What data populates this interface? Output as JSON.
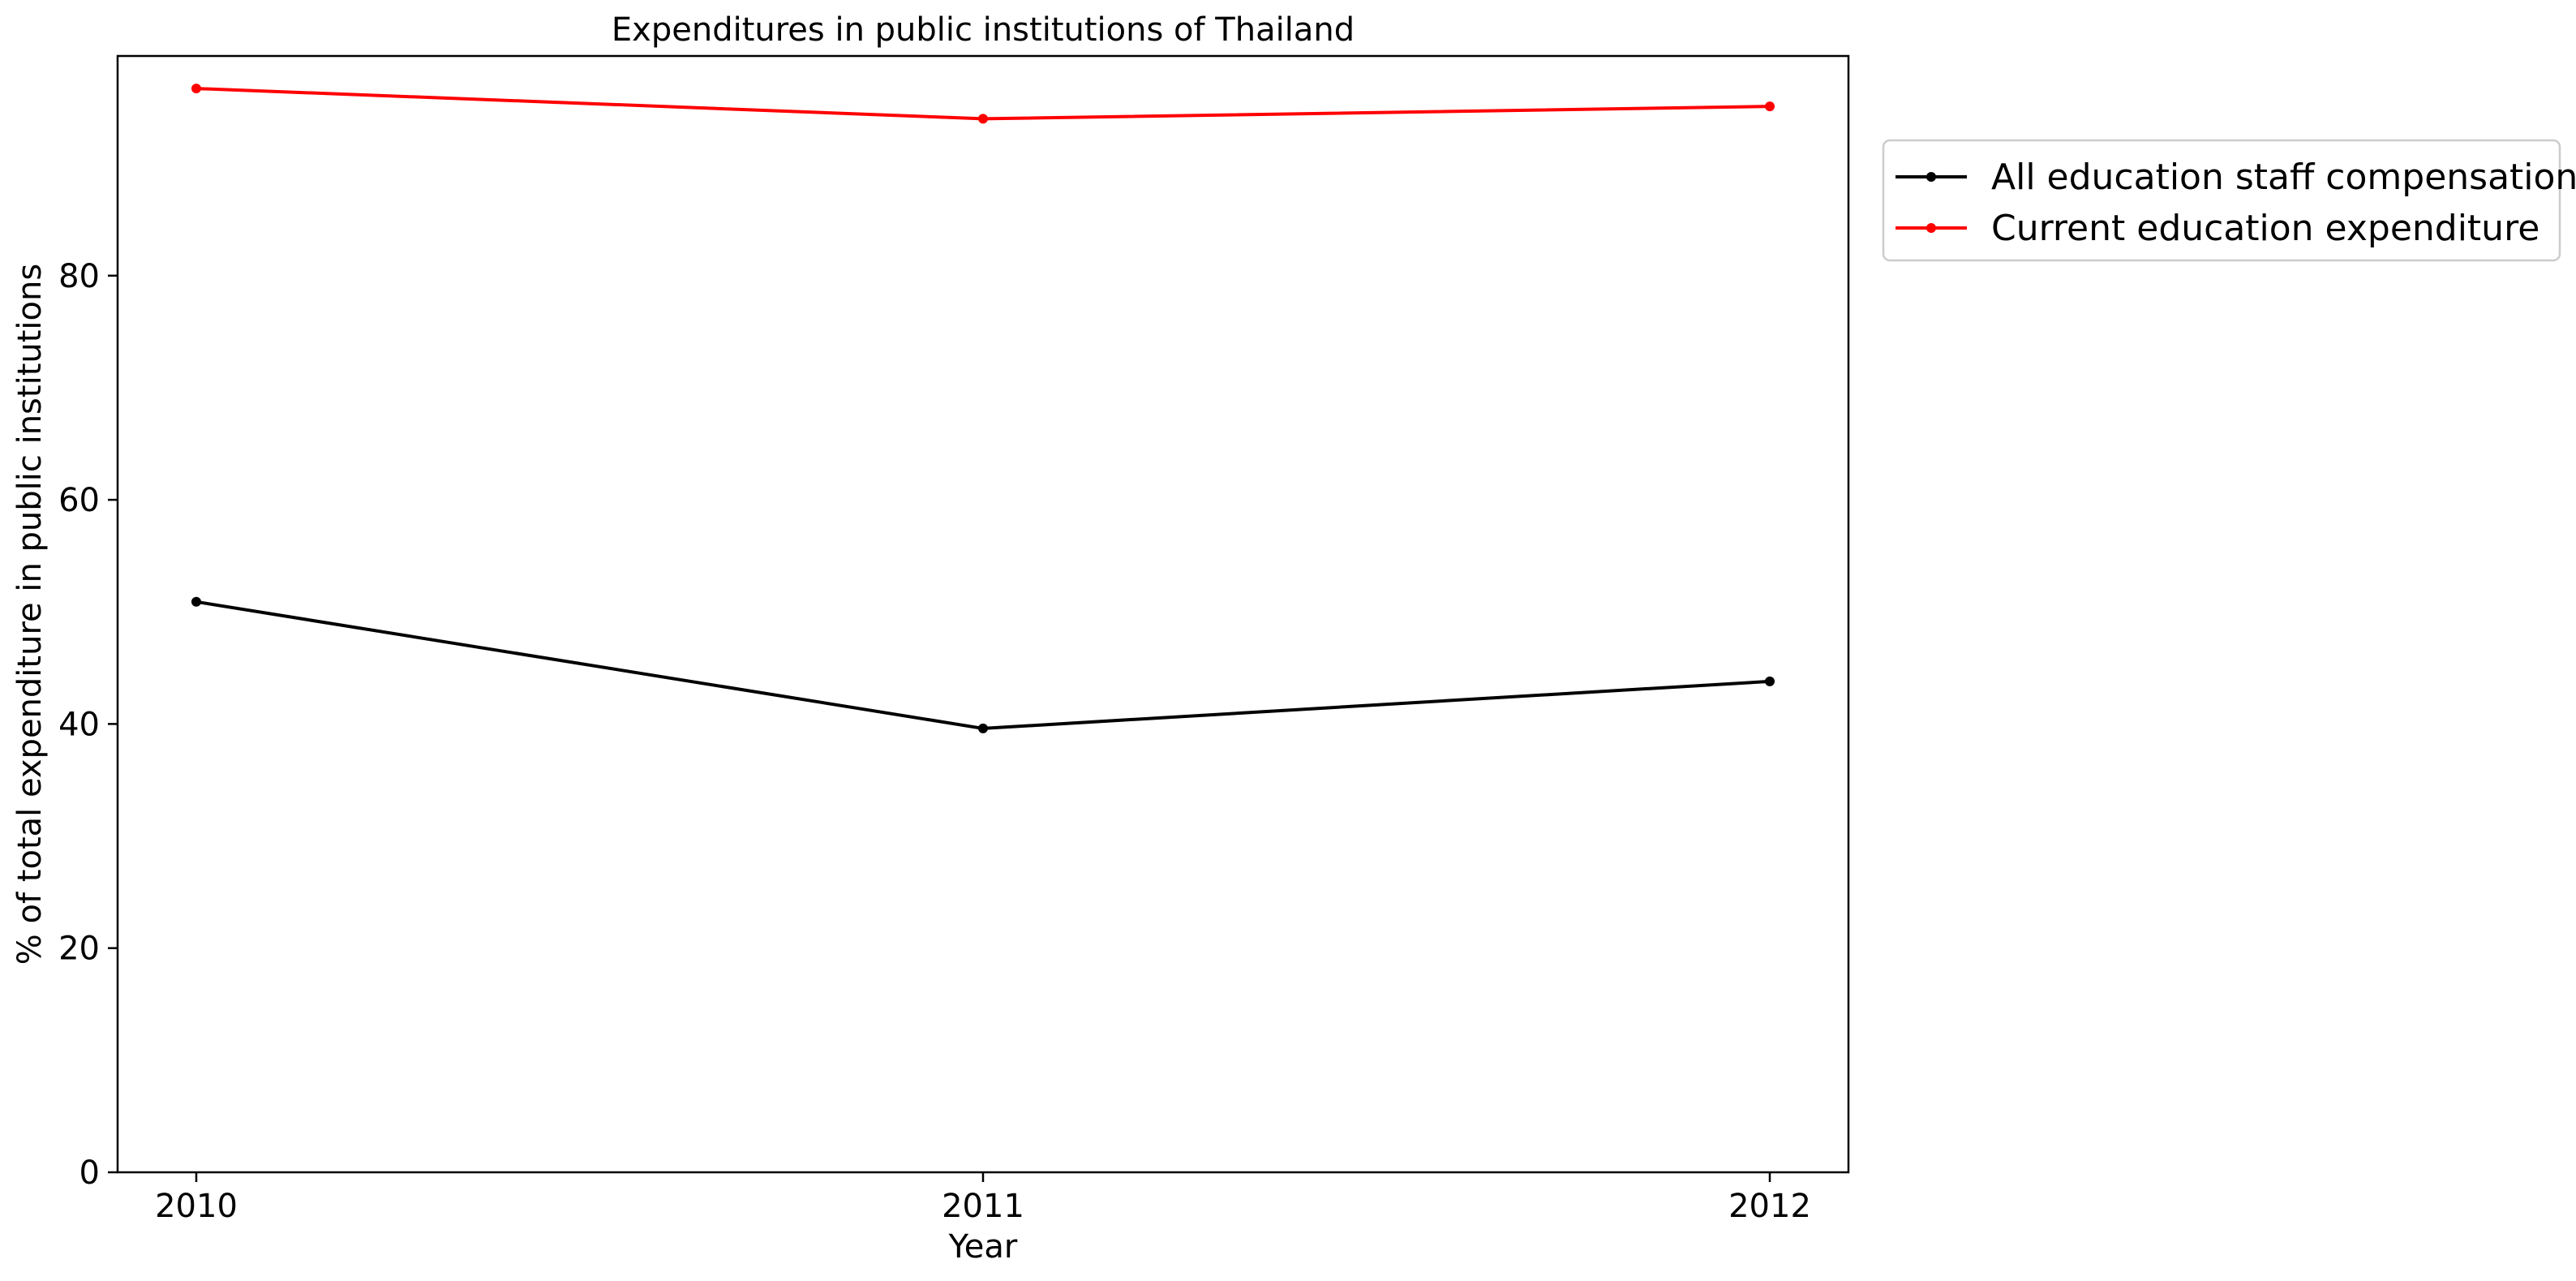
{
  "chart_data": {
    "type": "line",
    "title": "Expenditures in public institutions of Thailand",
    "xlabel": "Year",
    "ylabel": "% of total expenditure in public institutions",
    "x": [
      2010,
      2011,
      2012
    ],
    "x_tick_labels": [
      "2010",
      "2011",
      "2012"
    ],
    "xlim": [
      2009.9,
      2012.1
    ],
    "ylim": [
      0,
      99.6
    ],
    "y_ticks": [
      0,
      20,
      40,
      60,
      80
    ],
    "y_tick_labels": [
      "0",
      "20",
      "40",
      "60",
      "80"
    ],
    "grid": false,
    "legend_position": "outside-upper-right",
    "series": [
      {
        "name": "All education staff compensation",
        "color": "#000000",
        "marker": "circle",
        "values": [
          50.9,
          39.6,
          43.8
        ]
      },
      {
        "name": "Current education expenditure",
        "color": "#ff0000",
        "marker": "circle",
        "values": [
          96.7,
          94.0,
          95.1
        ]
      }
    ]
  }
}
